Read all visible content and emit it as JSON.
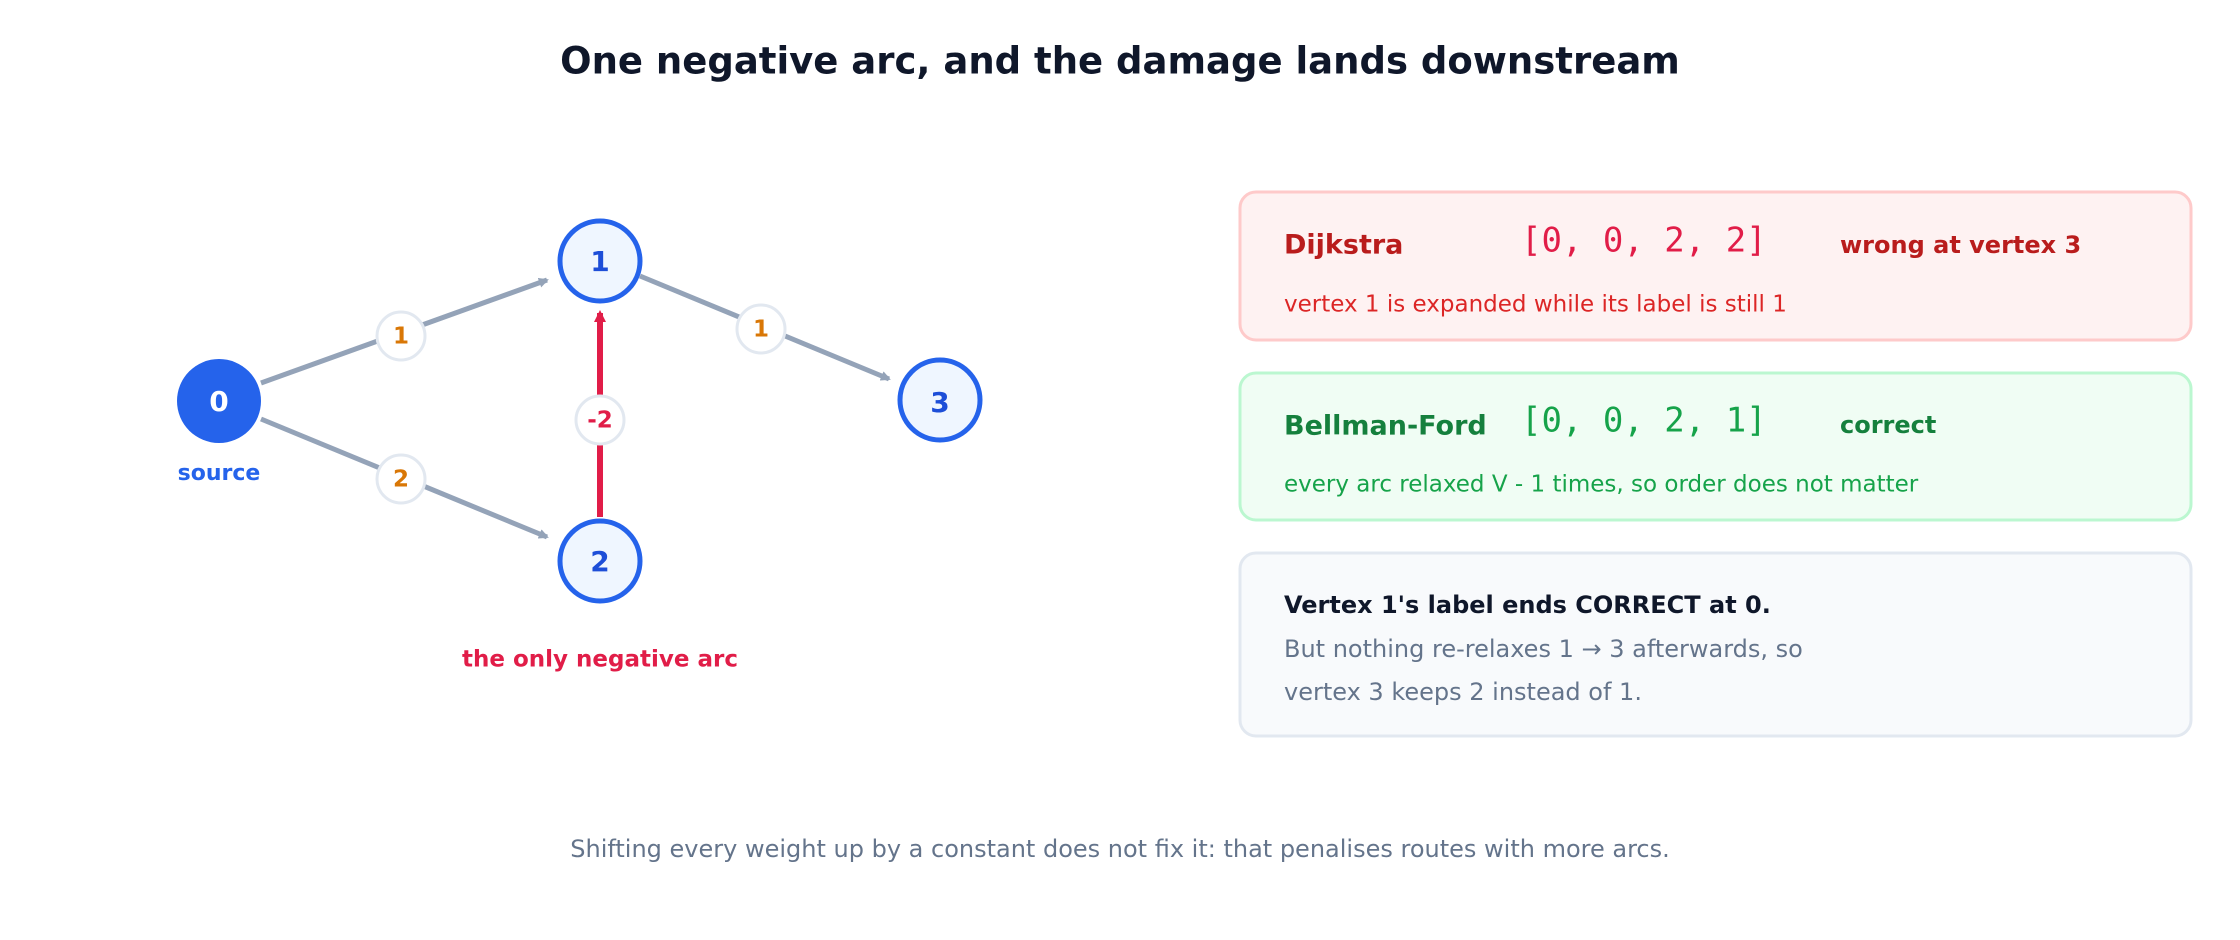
{
  "title": "One negative arc, and the damage lands downstream",
  "nodes": [
    {
      "label": "0",
      "note": "source"
    },
    {
      "label": "1"
    },
    {
      "label": "2"
    },
    {
      "label": "3"
    }
  ],
  "edges": [
    {
      "from": 0,
      "to": 1,
      "weight": 1
    },
    {
      "from": 0,
      "to": 2,
      "weight": 2
    },
    {
      "from": 2,
      "to": 1,
      "weight": -2
    },
    {
      "from": 1,
      "to": 3,
      "weight": 1
    }
  ],
  "negative_arc_note": "the only negative arc",
  "cards": [
    {
      "name": "Dijkstra",
      "result": "[0, 0, 2, 2]",
      "verdict": "wrong at vertex 3",
      "note": "vertex 1 is expanded while its label is still 1"
    },
    {
      "name": "Bellman-Ford",
      "result": "[0, 0, 2, 1]",
      "verdict": "correct",
      "note": "every arc relaxed V - 1 times, so order does not matter"
    }
  ],
  "explanation": {
    "headline": "Vertex 1's label ends CORRECT at 0.",
    "lines": [
      "But nothing re-relaxes 1 → 3 afterwards, so",
      "vertex 3 keeps 2 instead of 1."
    ]
  },
  "footnote": "Shifting every weight up by a constant does not fix it: that penalises routes with more arcs."
}
